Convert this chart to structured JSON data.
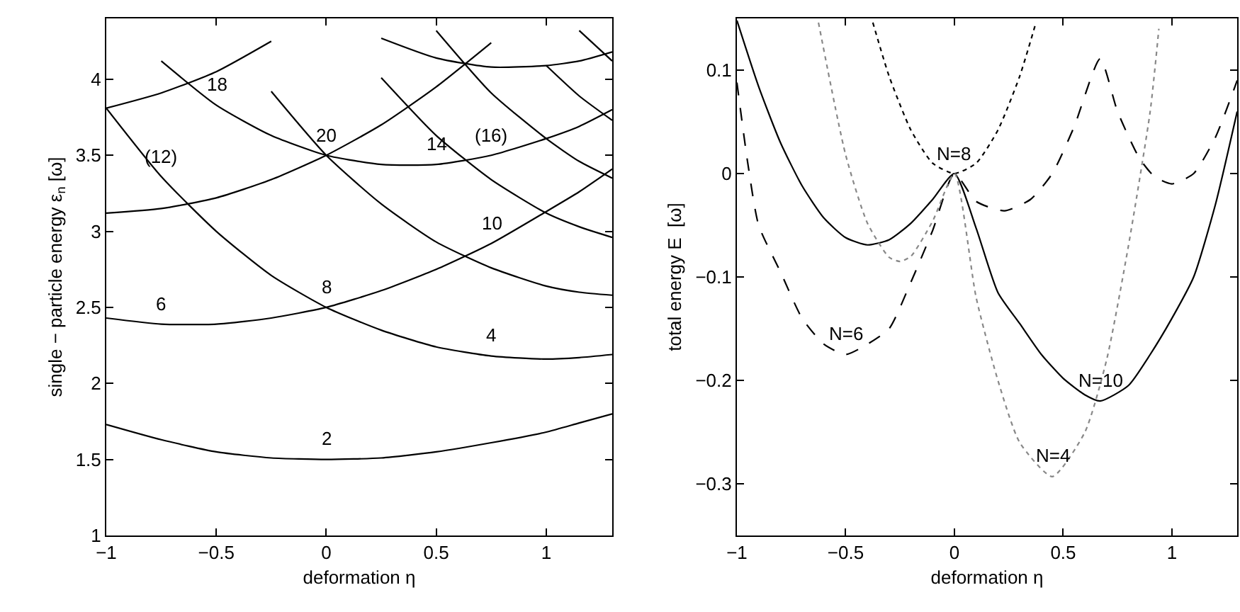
{
  "chart_data": [
    {
      "type": "line",
      "xlabel": "deformation η",
      "ylabel": "single − particle energy ε$_{n}$ [ω]",
      "x": [
        -1,
        -0.75,
        -0.5,
        -0.25,
        0,
        0.25,
        0.5,
        0.75,
        1,
        1.15,
        1.3
      ],
      "series": [
        {
          "color": "#000000",
          "values": [
            1.73,
            1.63,
            1.55,
            1.51,
            1.5,
            1.51,
            1.55,
            1.61,
            1.68,
            1.74,
            1.8
          ]
        },
        {
          "color": "#000000",
          "values": [
            3.81,
            3.36,
            3.0,
            2.71,
            2.5,
            2.35,
            2.24,
            2.18,
            2.16,
            2.17,
            2.19
          ]
        },
        {
          "color": "#000000",
          "values": [
            null,
            null,
            null,
            3.92,
            3.5,
            3.18,
            2.93,
            2.76,
            2.64,
            2.6,
            2.58
          ]
        },
        {
          "color": "#000000",
          "values": [
            null,
            null,
            null,
            null,
            null,
            4.01,
            3.63,
            3.34,
            3.12,
            3.03,
            2.96
          ]
        },
        {
          "color": "#000000",
          "values": [
            null,
            null,
            null,
            null,
            null,
            null,
            4.32,
            3.91,
            3.61,
            3.46,
            3.35
          ]
        },
        {
          "color": "#000000",
          "values": [
            null,
            null,
            null,
            null,
            null,
            null,
            null,
            null,
            4.09,
            3.89,
            3.73
          ]
        },
        {
          "color": "#000000",
          "values": [
            null,
            null,
            null,
            null,
            null,
            null,
            null,
            null,
            null,
            4.32,
            4.12
          ]
        },
        {
          "color": "#000000",
          "values": [
            2.43,
            2.39,
            2.39,
            2.43,
            2.5,
            2.61,
            2.75,
            2.92,
            3.13,
            3.26,
            3.41
          ]
        },
        {
          "color": "#000000",
          "values": [
            null,
            4.12,
            3.83,
            3.63,
            3.5,
            3.44,
            3.44,
            3.5,
            3.61,
            3.69,
            3.8
          ]
        },
        {
          "color": "#000000",
          "values": [
            null,
            null,
            null,
            null,
            null,
            4.27,
            4.14,
            4.08,
            4.09,
            4.12,
            4.18
          ]
        },
        {
          "color": "#000000",
          "values": [
            3.12,
            3.15,
            3.22,
            3.34,
            3.5,
            3.7,
            3.95,
            4.24,
            null,
            null,
            null
          ]
        },
        {
          "color": "#000000",
          "values": [
            3.81,
            3.91,
            4.05,
            4.25,
            null,
            null,
            null,
            null,
            null,
            null,
            null
          ]
        }
      ],
      "annotations": [
        {
          "text": "2",
          "x": 0,
          "y": 1.5
        },
        {
          "text": "4",
          "x": 0.75,
          "y": 2.18
        },
        {
          "text": "6",
          "x": -0.75,
          "y": 2.39
        },
        {
          "text": "8",
          "x": 0,
          "y": 2.5
        },
        {
          "text": "10",
          "x": 0.75,
          "y": 2.92
        },
        {
          "text": "(12)",
          "x": -0.75,
          "y": 3.36
        },
        {
          "text": "14",
          "x": 0.5,
          "y": 3.44
        },
        {
          "text": "(16)",
          "x": 0.75,
          "y": 3.5
        },
        {
          "text": "18",
          "x": -0.5,
          "y": 3.83
        },
        {
          "text": "20",
          "x": 0,
          "y": 3.5
        }
      ],
      "xlim": [
        -1,
        1.3
      ],
      "xticks": [
        -1,
        -0.5,
        0,
        0.5,
        1
      ],
      "ylim": [
        1,
        4.4
      ],
      "yticks": [
        1,
        1.5,
        2,
        2.5,
        3,
        3.5,
        4
      ],
      "line_style": "solid"
    },
    {
      "type": "line",
      "xlabel": "deformation η",
      "ylabel": "total energy E  [ω]",
      "series": [
        {
          "color": "#000000",
          "line_style": "solid",
          "x": [
            -1,
            -0.9,
            -0.8,
            -0.7,
            -0.6,
            -0.5,
            -0.4,
            -0.3,
            -0.2,
            -0.1,
            0,
            0.1,
            0.2,
            0.3,
            0.4,
            0.5,
            0.6,
            0.67,
            0.8,
            0.9,
            1,
            1.1,
            1.2,
            1.3
          ],
          "values": [
            0.148,
            0.084,
            0.03,
            -0.012,
            -0.043,
            -0.062,
            -0.069,
            -0.064,
            -0.048,
            -0.025,
            0,
            -0.053,
            -0.115,
            -0.145,
            -0.175,
            -0.198,
            -0.214,
            -0.22,
            -0.205,
            -0.175,
            -0.14,
            -0.1,
            -0.03,
            0.06
          ]
        },
        {
          "color": "#000000",
          "line_style": "dashed",
          "x": [
            -1,
            -0.95,
            -0.9,
            -0.8,
            -0.7,
            -0.6,
            -0.5,
            -0.4,
            -0.3,
            -0.2,
            -0.1,
            0,
            0.1,
            0.23,
            0.35,
            0.45,
            0.55,
            0.67,
            0.75,
            0.85,
            0.92,
            1,
            1.1,
            1.2,
            1.3
          ],
          "values": [
            0.088,
            0.01,
            -0.05,
            -0.095,
            -0.14,
            -0.165,
            -0.175,
            -0.165,
            -0.15,
            -0.105,
            -0.055,
            0,
            -0.027,
            -0.036,
            -0.025,
            0,
            0.045,
            0.111,
            0.06,
            0.015,
            -0.003,
            -0.01,
            0,
            0.035,
            0.09
          ]
        },
        {
          "color": "#000000",
          "line_style": "dotted",
          "x": [
            -0.375,
            -0.3,
            -0.2,
            -0.1,
            0,
            0.1,
            0.2,
            0.3,
            0.375
          ],
          "values": [
            0.146,
            0.094,
            0.042,
            0.01,
            0,
            0.01,
            0.042,
            0.094,
            0.146
          ]
        },
        {
          "color": "#888888",
          "line_style": "dotted",
          "x": [
            -0.625,
            -0.5,
            -0.4,
            -0.3,
            -0.25,
            -0.2,
            -0.1,
            0,
            0.1,
            0.2,
            0.3,
            0.45,
            0.6,
            0.7,
            0.8,
            0.9,
            0.94
          ],
          "values": [
            0.146,
            0.018,
            -0.048,
            -0.081,
            -0.085,
            -0.08,
            -0.046,
            0,
            -0.12,
            -0.2,
            -0.26,
            -0.293,
            -0.25,
            -0.18,
            -0.07,
            0.06,
            0.14
          ]
        }
      ],
      "annotations": [
        {
          "text": "N=8",
          "x": 0,
          "y": 0
        },
        {
          "text": "N=6",
          "x": -0.5,
          "y": -0.175
        },
        {
          "text": "N=10",
          "x": 0.67,
          "y": -0.22
        },
        {
          "text": "N=4",
          "x": 0.45,
          "y": -0.293
        }
      ],
      "xlim": [
        -1,
        1.3
      ],
      "xticks": [
        -1,
        -0.5,
        0,
        0.5,
        1
      ],
      "ylim": [
        -0.35,
        0.15
      ],
      "yticks": [
        -0.3,
        -0.2,
        -0.1,
        0,
        0.1
      ]
    }
  ]
}
